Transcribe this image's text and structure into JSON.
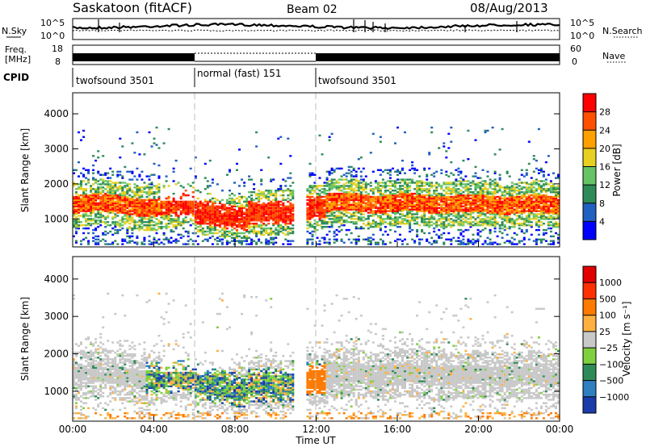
{
  "header": {
    "station": "Saskatoon (fitACF)",
    "beam": "Beam 02",
    "date": "08/Aug/2013"
  },
  "status_panels": {
    "noise": {
      "left_label": "N.Sky",
      "right_label": "N.Search",
      "left_ticks": [
        "10^5",
        "10^0"
      ],
      "right_ticks": [
        "10^5",
        "10^0"
      ]
    },
    "freq": {
      "left_label_1": "Freq.",
      "left_label_2": "[MHz]",
      "right_label": "Nave",
      "left_ticks": [
        "18",
        "8"
      ],
      "right_ticks": [
        "60",
        "0"
      ]
    },
    "cpid": {
      "label": "CPID",
      "segments": [
        {
          "text": "twofsound 3501",
          "start": 0,
          "end": 6
        },
        {
          "text": "normal (fast) 151",
          "start": 6,
          "end": 12
        },
        {
          "text": "twofsound 3501",
          "start": 12,
          "end": 24
        }
      ]
    }
  },
  "x_axis": {
    "title": "Time UT",
    "ticks": [
      "00:00",
      "04:00",
      "08:00",
      "12:00",
      "16:00",
      "20:00",
      "00:00"
    ],
    "range_hours": [
      0,
      24
    ]
  },
  "chart_data": [
    {
      "type": "heatmap",
      "name": "power",
      "ylabel": "Slant Range [km]",
      "ylim": [
        200,
        4600
      ],
      "yticks": [
        "1000",
        "2000",
        "3000",
        "4000"
      ],
      "colorbar_label": "Power [dB]",
      "colorbar_ticks": [
        "4",
        "8",
        "12",
        "16",
        "20",
        "24",
        "28"
      ],
      "colors": [
        "#0000ff",
        "#2060c0",
        "#2e8b57",
        "#66c466",
        "#e8d020",
        "#ffa000",
        "#ff5000",
        "#ff0000"
      ]
    },
    {
      "type": "heatmap",
      "name": "velocity",
      "ylabel": "Slant Range [km]",
      "ylim": [
        200,
        4600
      ],
      "yticks": [
        "1000",
        "2000",
        "3000",
        "4000"
      ],
      "colorbar_label": "Velocity [m s⁻¹]",
      "colorbar_ticks": [
        "1000",
        "500",
        "100",
        "25",
        "−25",
        "−100",
        "−500",
        "−1000"
      ],
      "colors": [
        "#1a3caa",
        "#2d7fc0",
        "#2e8b57",
        "#7fd040",
        "#c8c8c8",
        "#ffb040",
        "#ff7a00",
        "#ff3000",
        "#e00000"
      ]
    }
  ]
}
